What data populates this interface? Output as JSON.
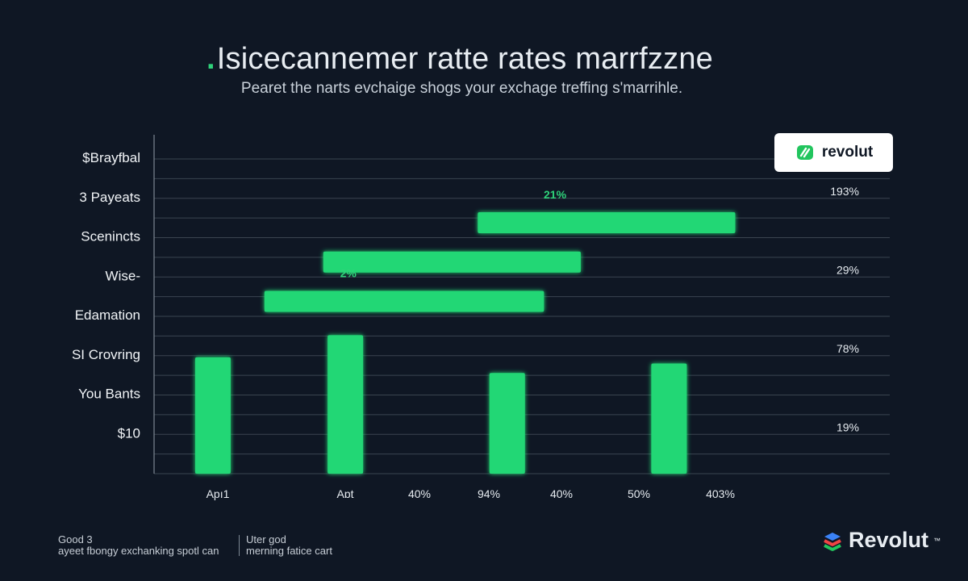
{
  "header": {
    "accent": ".",
    "title": "Isicecannemer ratte rates marrfzzne",
    "subtitle": "Pearet the narts evchaige shogs your exchage treffing s'marrihle."
  },
  "brand": {
    "card_label": "revolut",
    "footer_label": "Revolut",
    "footer_mark": "™"
  },
  "chart_data": {
    "type": "bar",
    "categories": [
      "$Brayfbal",
      "3 Payeats",
      "Scenincts",
      "Wise-",
      "Edamation",
      "SI Crovring",
      "You Bants",
      "$10"
    ],
    "right_labels": [
      "193%",
      "29%",
      "78%",
      "19%"
    ],
    "x_tick_labels": [
      "Apı1",
      "Aɒt",
      "40%",
      "94%",
      "40%",
      "50%",
      "403%"
    ],
    "horizontal_bars": [
      {
        "category": "3 Payeats",
        "start": 0.44,
        "end": 0.79,
        "label": "21%"
      },
      {
        "category": "Scenincts",
        "start": 0.23,
        "end": 0.58,
        "label": ""
      },
      {
        "category": "Wise-",
        "start": 0.15,
        "end": 0.53,
        "label": "2%"
      }
    ],
    "vertical_bars": [
      {
        "x": 0.08,
        "value": 0.37
      },
      {
        "x": 0.26,
        "value": 0.44
      },
      {
        "x": 0.48,
        "value": 0.32
      },
      {
        "x": 0.7,
        "value": 0.35
      }
    ],
    "grid": true,
    "bar_color": "#20d774",
    "grid_color": "#3a4450"
  },
  "footer": {
    "left_line1": "Good 3",
    "left_line2": "ayeet fbongy exchanking spotl can",
    "right_line1": "Uter god",
    "right_line2": "merning fatice cart"
  }
}
